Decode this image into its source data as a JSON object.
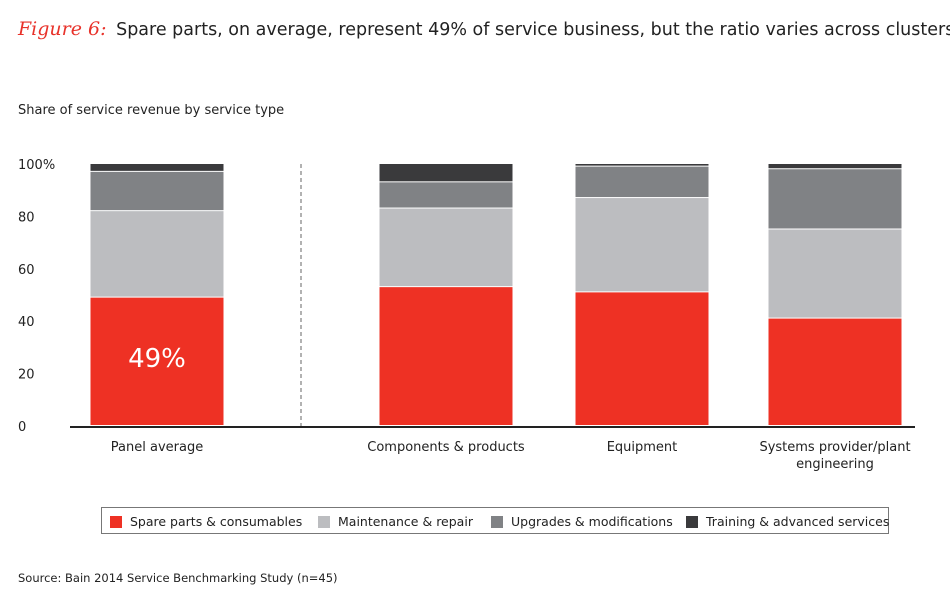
{
  "figure": {
    "label": "Figure 6:",
    "title": "Spare parts, on average, represent 49% of service business, but the ratio varies across clusters",
    "subtitle": "Share of service revenue by service type",
    "source": "Source: Bain 2014 Service Benchmarking Study (n=45)"
  },
  "chart_data": {
    "type": "bar",
    "stacked": true,
    "title": "Spare parts, on average, represent 49% of service business, but the ratio varies across clusters",
    "ylabel": "Share of service revenue by service type",
    "ylim": [
      0,
      100
    ],
    "yticks": [
      "0",
      "20",
      "40",
      "60",
      "80",
      "100%"
    ],
    "categories": [
      "Panel average",
      "Components & products",
      "Equipment",
      "Systems provider/plant engineering"
    ],
    "category_lines": [
      [
        "Panel average"
      ],
      [
        "Components & products"
      ],
      [
        "Equipment"
      ],
      [
        "Systems provider/plant",
        "engineering"
      ]
    ],
    "series": [
      {
        "name": "Spare parts & consumables",
        "color": "#ee3124",
        "values": [
          49,
          53,
          51,
          41
        ]
      },
      {
        "name": "Maintenance & repair",
        "color": "#bcbdc0",
        "values": [
          33,
          30,
          36,
          34
        ]
      },
      {
        "name": "Upgrades & modifications",
        "color": "#808285",
        "values": [
          15,
          10,
          12,
          23
        ]
      },
      {
        "name": "Training & advanced services",
        "color": "#3a3a3c",
        "values": [
          3,
          7,
          1,
          2
        ]
      }
    ],
    "annotations": [
      {
        "category": "Panel average",
        "text": "49%"
      }
    ],
    "separator_after": "Panel average",
    "grid": false,
    "legend_position": "bottom"
  }
}
